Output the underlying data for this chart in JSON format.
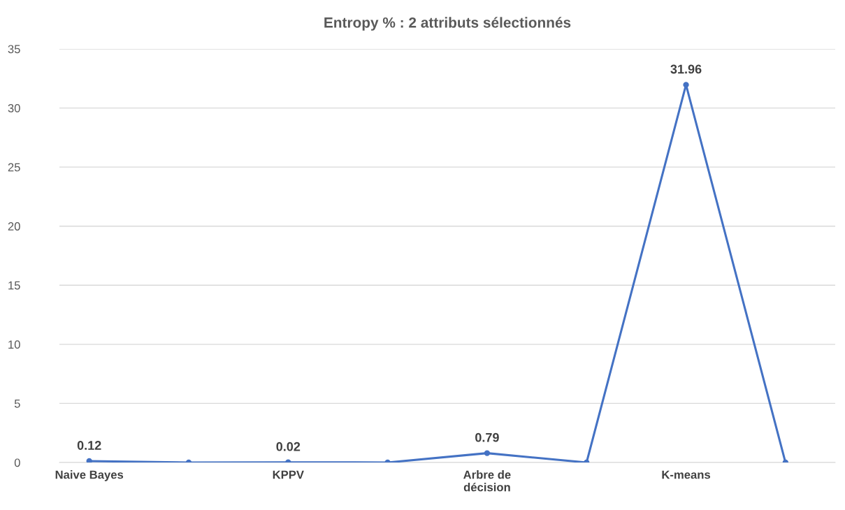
{
  "chart_data": {
    "type": "line",
    "title": "Entropy % : 2 attributs sélectionnés",
    "categories": [
      "Naive Bayes",
      null,
      "KPPV",
      null,
      "Arbre de\ndécision",
      null,
      "K-means",
      null
    ],
    "series": [
      {
        "color": "#4472c4",
        "values": [
          0.12,
          0,
          0.02,
          0,
          0.79,
          0,
          31.96,
          0
        ],
        "value_labels": [
          "0.12",
          null,
          "0.02",
          null,
          "0.79",
          null,
          "31.96",
          null
        ]
      }
    ],
    "ylim": [
      0,
      35
    ],
    "yticks": [
      0,
      5,
      10,
      15,
      20,
      25,
      30,
      35
    ],
    "grid": "y",
    "marker": "circle",
    "line_style": "solid"
  }
}
